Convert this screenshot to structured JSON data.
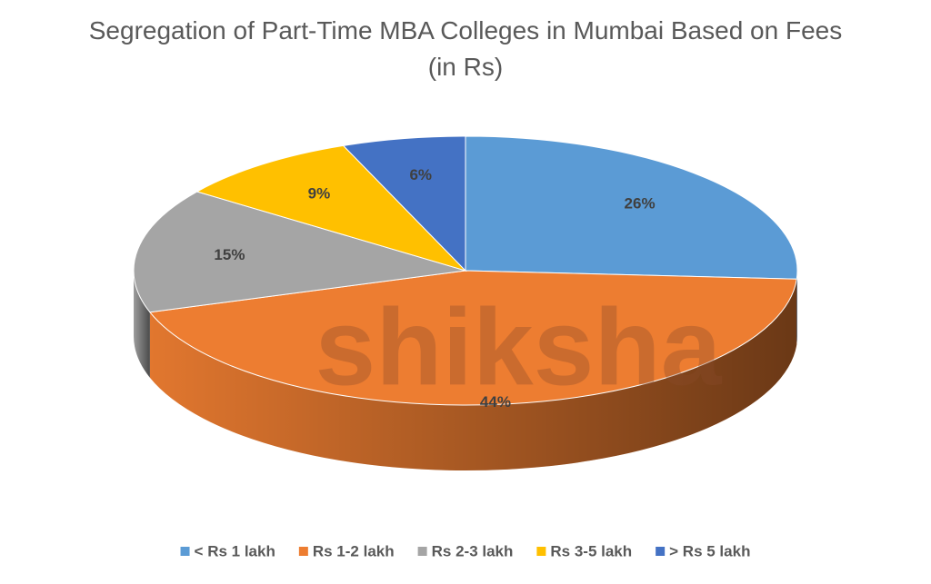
{
  "chart_data": {
    "type": "pie",
    "title": "Segregation of Part-Time MBA Colleges in Mumbai Based on Fees (in Rs)",
    "watermark": "shiksha",
    "categories": [
      "< Rs 1 lakh",
      "Rs 1-2 lakh",
      "Rs 2-3 lakh",
      "Rs 3-5 lakh",
      "> Rs 5 lakh"
    ],
    "values": [
      26,
      44,
      15,
      9,
      6
    ],
    "value_labels": [
      "26%",
      "44%",
      "15%",
      "9%",
      "6%"
    ],
    "colors": [
      "#5b9bd5",
      "#ed7d31",
      "#a5a5a5",
      "#ffc000",
      "#4472c4"
    ],
    "legend": "bottom"
  }
}
